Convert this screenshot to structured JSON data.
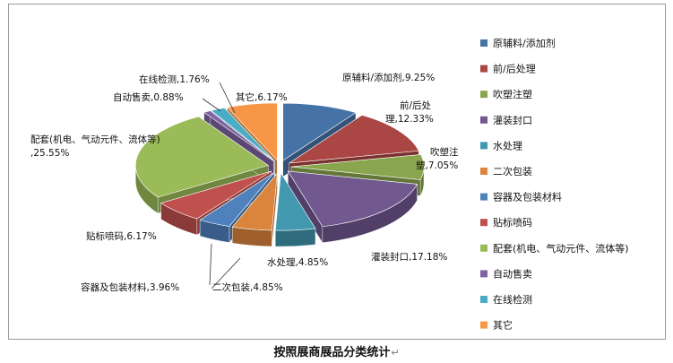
{
  "chart_data": {
    "type": "pie",
    "title": "按照展商展品分类统计",
    "style": "exploded-3d",
    "legend_position": "right",
    "slices": [
      {
        "name": "原辅料/添加剂",
        "value": 9.25,
        "label": "原辅料/添加剂,9.25%",
        "color": "#4572A7"
      },
      {
        "name": "前/后处理",
        "value": 12.33,
        "label": "前/后处理,12.33%",
        "color": "#AA4643"
      },
      {
        "name": "吹塑注塑",
        "value": 7.05,
        "label": "吹塑注塑,7.05%",
        "color": "#89A54E"
      },
      {
        "name": "灌装封口",
        "value": 17.18,
        "label": "灌装封口,17.18%",
        "color": "#71588F"
      },
      {
        "name": "水处理",
        "value": 4.85,
        "label": "水处理,4.85%",
        "color": "#4198AF"
      },
      {
        "name": "二次包装",
        "value": 4.85,
        "label": "二次包装,4.85%",
        "color": "#DB843D"
      },
      {
        "name": "容器及包装材料",
        "value": 3.96,
        "label": "容器及包装材料,3.96%",
        "color": "#4F81BD"
      },
      {
        "name": "贴标喷码",
        "value": 6.17,
        "label": "贴标喷码,6.17%",
        "color": "#C0504D"
      },
      {
        "name": "配套(机电、气动元件、流体等)",
        "value": 25.55,
        "label": "配套(机电、气动元件、流体等),25.55%",
        "color": "#9BBB59"
      },
      {
        "name": "自动售卖",
        "value": 0.88,
        "label": "自动售卖,0.88%",
        "color": "#8064A2"
      },
      {
        "name": "在线检测",
        "value": 1.76,
        "label": "在线检测,1.76%",
        "color": "#4BACC6"
      },
      {
        "name": "其它",
        "value": 6.17,
        "label": "其它,6.17%",
        "color": "#F79646"
      }
    ]
  }
}
